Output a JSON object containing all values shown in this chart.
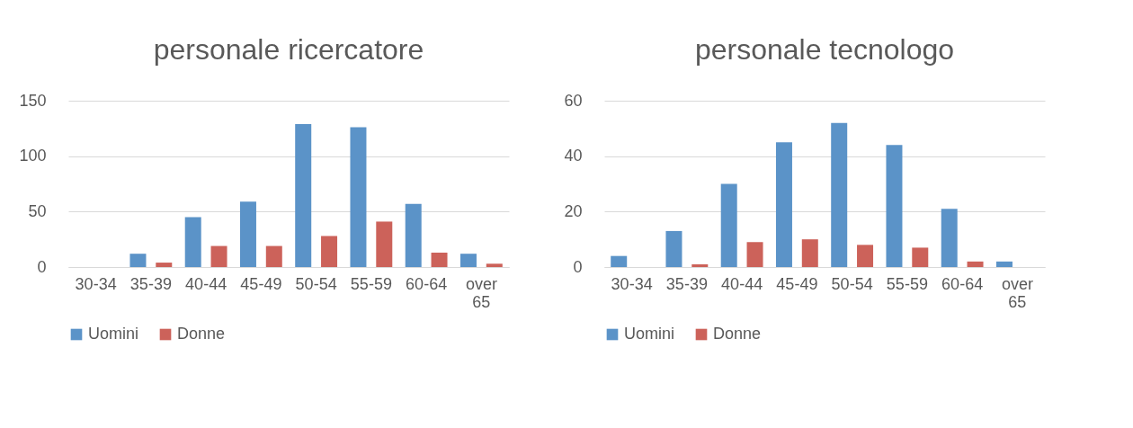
{
  "chart_data": [
    {
      "type": "bar",
      "title": "personale ricercatore",
      "categories": [
        "30-34",
        "35-39",
        "40-44",
        "45-49",
        "50-54",
        "55-59",
        "60-64",
        "over 65"
      ],
      "series": [
        {
          "name": "Uomini",
          "color": "#5b93c8",
          "values": [
            0,
            12,
            45,
            59,
            129,
            126,
            57,
            12
          ]
        },
        {
          "name": "Donne",
          "color": "#cc625a",
          "values": [
            0,
            4,
            19,
            19,
            28,
            41,
            13,
            3
          ]
        }
      ],
      "ylim": [
        0,
        150
      ],
      "yticks": [
        0,
        50,
        100,
        150
      ],
      "grid": "y",
      "legend": "bottom"
    },
    {
      "type": "bar",
      "title": "personale tecnologo",
      "categories": [
        "30-34",
        "35-39",
        "40-44",
        "45-49",
        "50-54",
        "55-59",
        "60-64",
        "over 65"
      ],
      "series": [
        {
          "name": "Uomini",
          "color": "#5b93c8",
          "values": [
            4,
            13,
            30,
            45,
            52,
            44,
            21,
            2
          ]
        },
        {
          "name": "Donne",
          "color": "#cc625a",
          "values": [
            0,
            1,
            9,
            10,
            8,
            7,
            2,
            0
          ]
        }
      ],
      "ylim": [
        0,
        60
      ],
      "yticks": [
        0,
        20,
        40,
        60
      ],
      "grid": "y",
      "legend": "bottom"
    }
  ]
}
